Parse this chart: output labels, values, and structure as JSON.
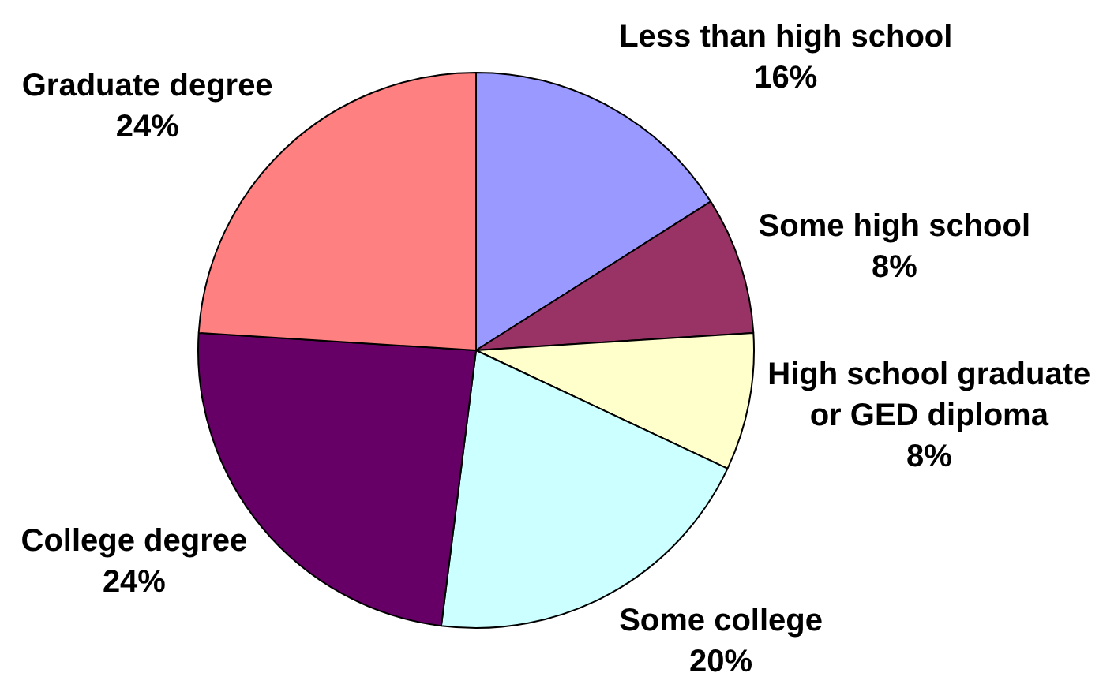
{
  "chart_data": {
    "type": "pie",
    "categories": [
      "Less than high school",
      "Some high school",
      "High school graduate or GED diploma",
      "Some college",
      "College degree",
      "Graduate degree"
    ],
    "values": [
      16,
      8,
      8,
      20,
      24,
      24
    ],
    "colors": [
      "#9999ff",
      "#993366",
      "#ffffcc",
      "#ccffff",
      "#660066",
      "#ff8080"
    ],
    "value_labels": [
      "16%",
      "8%",
      "8%",
      "20%",
      "24%",
      "24%"
    ]
  }
}
